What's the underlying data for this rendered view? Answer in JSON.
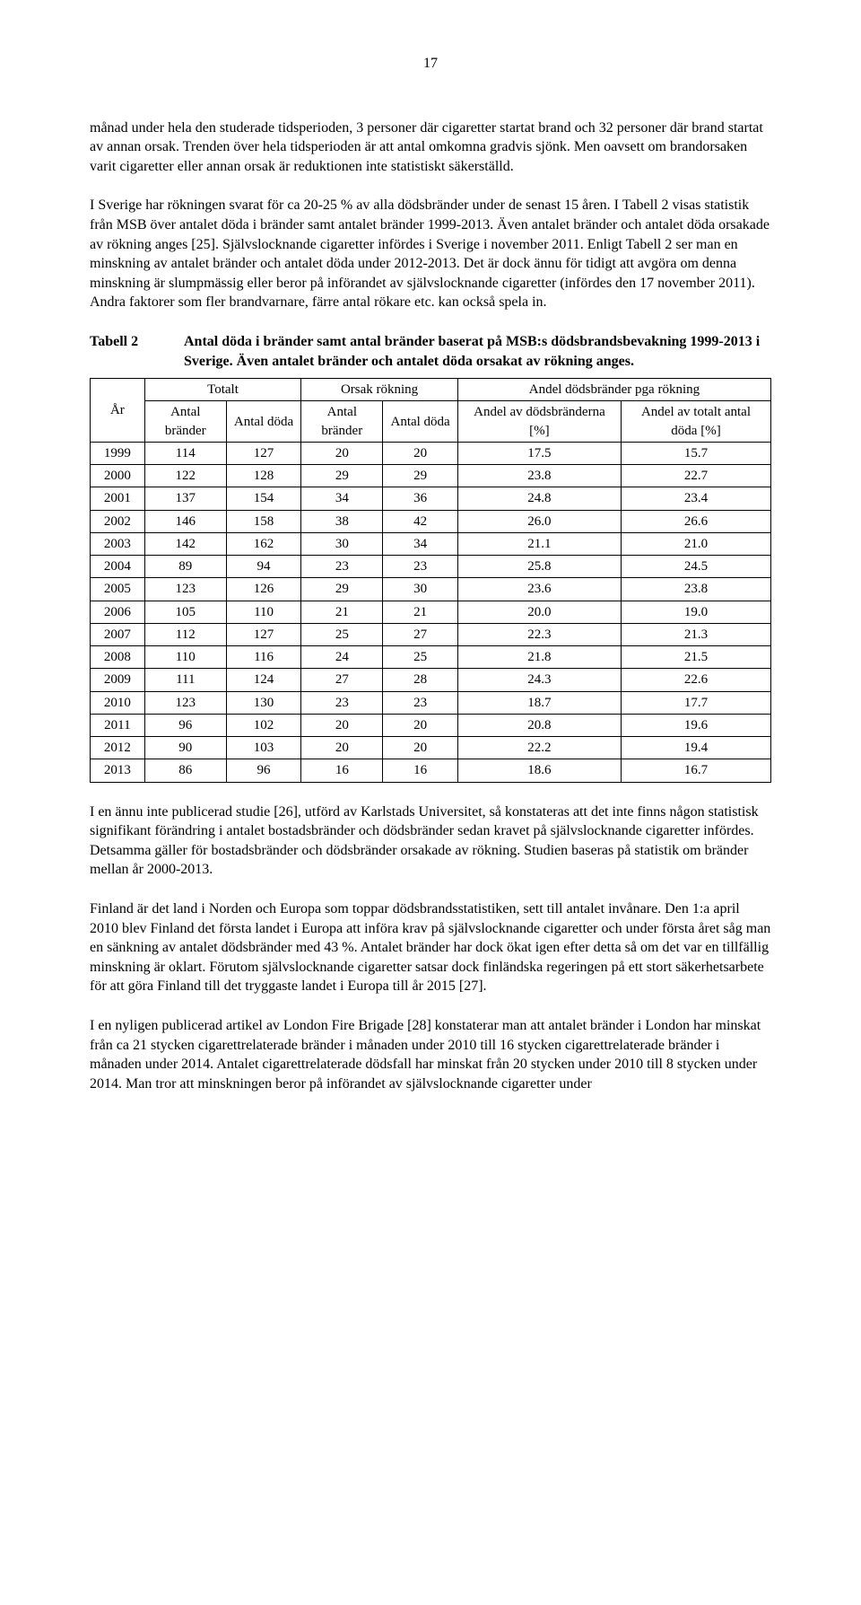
{
  "page_number": "17",
  "paragraphs": {
    "p1": "månad under hela den studerade tidsperioden, 3 personer där cigaretter startat brand och 32 personer där brand startat av annan orsak. Trenden över hela tidsperioden är att antal omkomna gradvis sjönk. Men oavsett om brandorsaken varit cigaretter eller annan orsak är reduktionen inte statistiskt säkerställd.",
    "p2": "I Sverige har rökningen svarat för ca 20-25 % av alla dödsbränder under de senast 15 åren. I Tabell 2 visas statistik från MSB över antalet döda i bränder samt antalet bränder 1999-2013. Även antalet bränder och antalet döda orsakade av rökning anges [25]. Självslocknande cigaretter infördes i Sverige i november 2011. Enligt Tabell 2 ser man en minskning av antalet bränder och antalet döda under 2012-2013. Det är dock ännu för tidigt att avgöra om denna minskning är slumpmässig eller beror på införandet av självslocknande cigaretter (infördes den 17 november 2011). Andra faktorer som fler brandvarnare, färre antal rökare etc. kan också spela in.",
    "p3": "I en ännu inte publicerad studie [26], utförd av Karlstads Universitet, så konstateras att det inte finns någon statistisk signifikant förändring i antalet bostadsbränder och dödsbränder sedan kravet på självslocknande cigaretter infördes. Detsamma gäller för bostadsbränder och dödsbränder orsakade av rökning. Studien baseras på statistik om bränder mellan år 2000-2013.",
    "p4": "Finland är det land i Norden och Europa som toppar dödsbrandsstatistiken, sett till antalet invånare. Den 1:a april 2010 blev Finland det första landet i Europa att införa krav på självslocknande cigaretter och under första året såg man en sänkning av antalet dödsbränder med 43 %. Antalet bränder har dock ökat igen efter detta så om det var en tillfällig minskning är oklart. Förutom självslocknande cigaretter satsar dock finländska regeringen på ett stort säkerhetsarbete för att göra Finland till det tryggaste landet i Europa till år 2015 [27].",
    "p5": "I en nyligen publicerad artikel av London Fire Brigade [28] konstaterar man att antalet bränder i London har minskat från ca 21 stycken cigarettrelaterade bränder i månaden under 2010 till 16 stycken cigarettrelaterade bränder i månaden under 2014. Antalet cigarettrelaterade dödsfall har minskat från 20 stycken under 2010 till 8 stycken under 2014. Man tror att minskningen beror på införandet av självslocknande cigaretter under"
  },
  "table": {
    "label": "Tabell 2",
    "caption": "Antal döda i bränder samt antal bränder baserat på MSB:s dödsbrandsbevakning 1999-2013 i Sverige. Även antalet bränder och antalet döda orsakat av rökning anges.",
    "type": "table",
    "background_color": "#ffffff",
    "border_color": "#000000",
    "font_size_pt": 11,
    "header_groups": {
      "col1": "År",
      "g1": "Totalt",
      "g2": "Orsak rökning",
      "g3": "Andel dödsbränder pga rökning"
    },
    "sub_headers": {
      "c2": "Antal bränder",
      "c3": "Antal döda",
      "c4": "Antal bränder",
      "c5": "Antal döda",
      "c6": "Andel av dödsbränderna [%]",
      "c7": "Andel av totalt antal döda [%]"
    },
    "rows": [
      [
        "1999",
        "114",
        "127",
        "20",
        "20",
        "17.5",
        "15.7"
      ],
      [
        "2000",
        "122",
        "128",
        "29",
        "29",
        "23.8",
        "22.7"
      ],
      [
        "2001",
        "137",
        "154",
        "34",
        "36",
        "24.8",
        "23.4"
      ],
      [
        "2002",
        "146",
        "158",
        "38",
        "42",
        "26.0",
        "26.6"
      ],
      [
        "2003",
        "142",
        "162",
        "30",
        "34",
        "21.1",
        "21.0"
      ],
      [
        "2004",
        "89",
        "94",
        "23",
        "23",
        "25.8",
        "24.5"
      ],
      [
        "2005",
        "123",
        "126",
        "29",
        "30",
        "23.6",
        "23.8"
      ],
      [
        "2006",
        "105",
        "110",
        "21",
        "21",
        "20.0",
        "19.0"
      ],
      [
        "2007",
        "112",
        "127",
        "25",
        "27",
        "22.3",
        "21.3"
      ],
      [
        "2008",
        "110",
        "116",
        "24",
        "25",
        "21.8",
        "21.5"
      ],
      [
        "2009",
        "111",
        "124",
        "27",
        "28",
        "24.3",
        "22.6"
      ],
      [
        "2010",
        "123",
        "130",
        "23",
        "23",
        "18.7",
        "17.7"
      ],
      [
        "2011",
        "96",
        "102",
        "20",
        "20",
        "20.8",
        "19.6"
      ],
      [
        "2012",
        "90",
        "103",
        "20",
        "20",
        "22.2",
        "19.4"
      ],
      [
        "2013",
        "86",
        "96",
        "16",
        "16",
        "18.6",
        "16.7"
      ]
    ],
    "col_widths_pct": [
      8,
      12,
      11,
      12,
      11,
      24,
      22
    ]
  }
}
